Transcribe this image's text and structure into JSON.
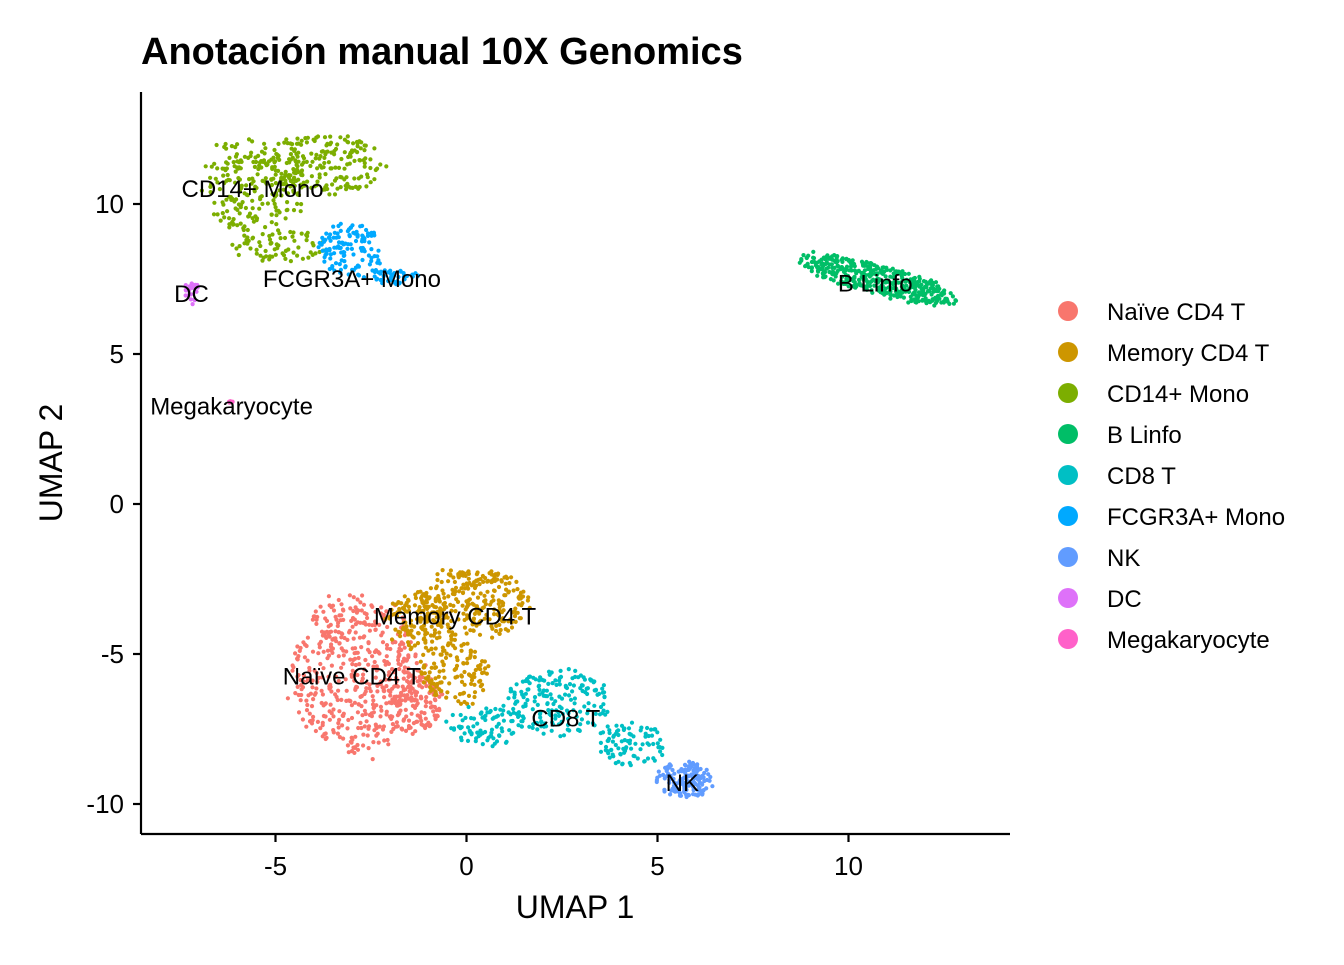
{
  "chart_data": {
    "type": "scatter",
    "title": "Anotación manual 10X Genomics",
    "xlabel": "UMAP 1",
    "ylabel": "UMAP 2",
    "xlim": [
      -8.6,
      14.2
    ],
    "ylim": [
      -11.0,
      13.8
    ],
    "x_ticks": [
      -5,
      0,
      5,
      10
    ],
    "y_ticks": [
      -10,
      -5,
      0,
      5,
      10
    ],
    "x_tick_labels": [
      "-5",
      "0",
      "5",
      "10"
    ],
    "y_tick_labels": [
      "-10",
      "-5",
      "0",
      "5",
      "10"
    ],
    "grid": false,
    "legend_position": "right",
    "series": [
      {
        "name": "Naïve CD4 T",
        "color": "#F8766D",
        "label_x": -3.0,
        "label_y": -5.75,
        "n_points": 620,
        "regions": [
          {
            "cx": -2.9,
            "cy": -5.7,
            "rx": 1.85,
            "ry": 2.85,
            "w": 1.0
          },
          {
            "cx": -1.4,
            "cy": -6.6,
            "rx": 0.8,
            "ry": 1.2,
            "w": 0.25
          }
        ]
      },
      {
        "name": "Memory CD4 T",
        "color": "#CD9600",
        "label_x": -0.3,
        "label_y": -3.75,
        "n_points": 520,
        "regions": [
          {
            "cx": 0.2,
            "cy": -3.3,
            "rx": 1.6,
            "ry": 1.3,
            "w": 1.0
          },
          {
            "cx": -1.3,
            "cy": -3.9,
            "rx": 0.9,
            "ry": 1.1,
            "w": 0.5
          },
          {
            "cx": -0.3,
            "cy": -5.6,
            "rx": 1.0,
            "ry": 1.2,
            "w": 0.55
          }
        ]
      },
      {
        "name": "CD14+ Mono",
        "color": "#7CAE00",
        "label_x": -5.6,
        "label_y": 10.5,
        "n_points": 480,
        "regions": [
          {
            "cx": -5.6,
            "cy": 10.6,
            "rx": 1.5,
            "ry": 1.7,
            "w": 1.0
          },
          {
            "cx": -3.8,
            "cy": 11.3,
            "rx": 1.9,
            "ry": 1.1,
            "w": 0.9
          },
          {
            "cx": -4.9,
            "cy": 8.6,
            "rx": 1.3,
            "ry": 0.6,
            "w": 0.35
          }
        ]
      },
      {
        "name": "B Linfo",
        "color": "#00BE67",
        "label_x": 10.7,
        "label_y": 7.35,
        "n_points": 420,
        "regions": [
          {
            "cx": 10.7,
            "cy": 7.5,
            "rx": 2.3,
            "ry": 0.55,
            "w": 1.0,
            "angle": -0.32
          }
        ]
      },
      {
        "name": "CD8 T",
        "color": "#00BFC4",
        "label_x": 2.6,
        "label_y": -7.15,
        "n_points": 360,
        "regions": [
          {
            "cx": 2.4,
            "cy": -6.6,
            "rx": 1.5,
            "ry": 1.2,
            "w": 1.0
          },
          {
            "cx": 0.5,
            "cy": -7.4,
            "rx": 1.1,
            "ry": 0.7,
            "w": 0.5
          },
          {
            "cx": 4.3,
            "cy": -8.0,
            "rx": 1.0,
            "ry": 0.8,
            "w": 0.55
          }
        ]
      },
      {
        "name": "FCGR3A+ Mono",
        "color": "#00A9FF",
        "label_x": -3.0,
        "label_y": 7.5,
        "n_points": 170,
        "regions": [
          {
            "cx": -3.0,
            "cy": 8.5,
            "rx": 0.9,
            "ry": 1.0,
            "w": 1.0
          },
          {
            "cx": -2.0,
            "cy": 7.55,
            "rx": 0.8,
            "ry": 0.28,
            "w": 0.4
          }
        ]
      },
      {
        "name": "NK",
        "color": "#619CFF",
        "label_x": 5.65,
        "label_y": -9.3,
        "n_points": 160,
        "regions": [
          {
            "cx": 5.7,
            "cy": -9.2,
            "rx": 0.8,
            "ry": 0.65,
            "w": 1.0
          }
        ]
      },
      {
        "name": "DC",
        "color": "#DE71F9",
        "label_x": -7.2,
        "label_y": 7.0,
        "n_points": 22,
        "regions": [
          {
            "cx": -7.2,
            "cy": 7.1,
            "rx": 0.18,
            "ry": 0.5,
            "w": 1.0
          }
        ]
      },
      {
        "name": "Megakaryocyte",
        "color": "#FF61C9",
        "label_x": -6.15,
        "label_y": 3.25,
        "n_points": 6,
        "regions": [
          {
            "cx": -6.15,
            "cy": 3.35,
            "rx": 0.12,
            "ry": 0.1,
            "w": 1.0
          }
        ]
      }
    ]
  }
}
